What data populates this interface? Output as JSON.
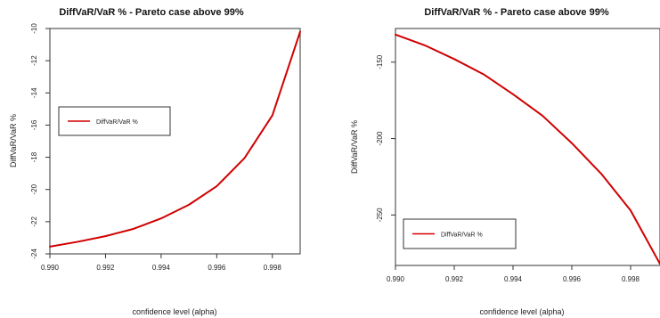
{
  "chart_data": [
    {
      "type": "line",
      "title": "DiffVaR/VaR %  - Pareto case above 99%",
      "xlabel": "confidence level (alpha)",
      "ylabel": "DiffVaR/VaR %",
      "xlim": [
        0.99,
        0.999
      ],
      "ylim": [
        -24,
        -10
      ],
      "x_ticks": [
        "0.990",
        "0.992",
        "0.994",
        "0.996",
        "0.998"
      ],
      "y_ticks": [
        "-10",
        "-12",
        "-14",
        "-16",
        "-18",
        "-20",
        "-22",
        "-24"
      ],
      "legend": {
        "placement": "center-left",
        "entries": [
          "DiffVaR/VaR %"
        ]
      },
      "grid": false,
      "series": [
        {
          "name": "DiffVaR/VaR %",
          "color": "#d00000",
          "x": [
            0.99,
            0.991,
            0.992,
            0.993,
            0.994,
            0.995,
            0.996,
            0.997,
            0.998,
            0.999
          ],
          "y": [
            -23.55,
            -23.25,
            -22.9,
            -22.45,
            -21.8,
            -20.95,
            -19.8,
            -18.05,
            -15.4,
            -10.2
          ]
        }
      ]
    },
    {
      "type": "line",
      "title": "DiffVaR/VaR %  - Pareto case above 99%",
      "xlabel": "confidence level (alpha)",
      "ylabel": "DiffVaR/VaR %",
      "xlim": [
        0.99,
        0.999
      ],
      "ylim": [
        -283,
        -128
      ],
      "x_ticks": [
        "0.990",
        "0.992",
        "0.994",
        "0.996",
        "0.998"
      ],
      "y_ticks": [
        "-150",
        "-200",
        "-250"
      ],
      "legend": {
        "placement": "bottom-left",
        "entries": [
          "DiffVaR/VaR %"
        ]
      },
      "grid": false,
      "series": [
        {
          "name": "DiffVaR/VaR %",
          "color": "#d00000",
          "x": [
            0.99,
            0.991,
            0.992,
            0.993,
            0.994,
            0.995,
            0.996,
            0.997,
            0.998,
            0.999
          ],
          "y": [
            -132,
            -139,
            -148,
            -158,
            -171,
            -185,
            -203,
            -223,
            -247,
            -282
          ]
        }
      ]
    }
  ]
}
